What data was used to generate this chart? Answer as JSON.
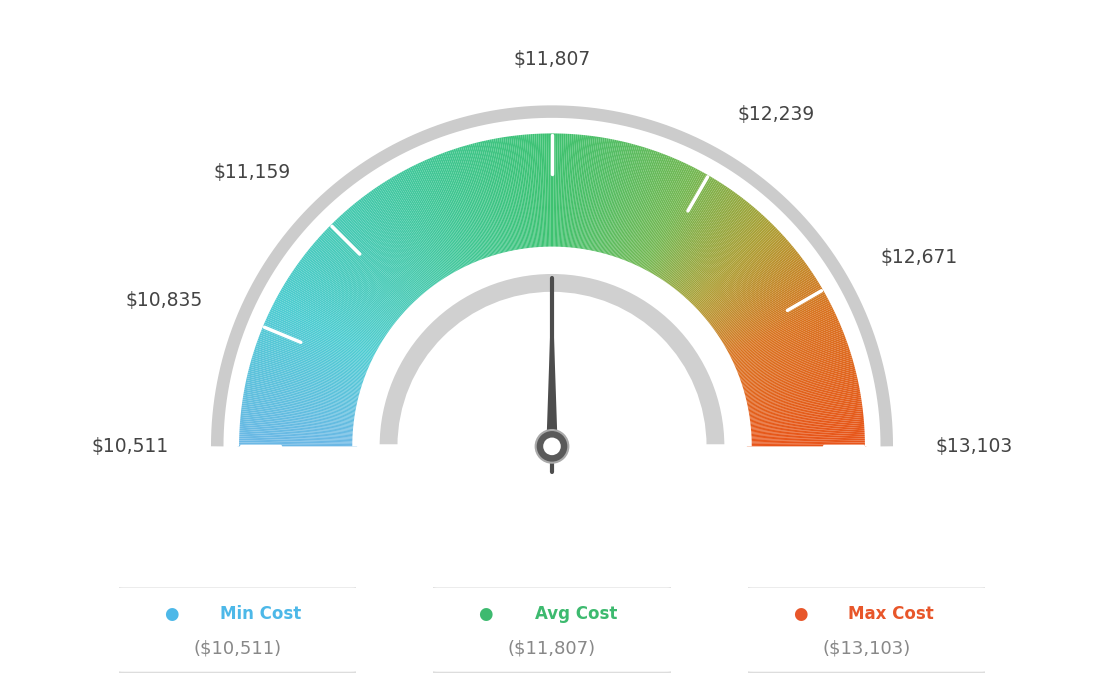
{
  "min_value": 10511,
  "max_value": 13103,
  "avg_value": 11807,
  "labels": {
    "min": "$10,511",
    "l1": "$10,835",
    "l2": "$11,159",
    "avg": "$11,807",
    "r1": "$12,239",
    "r2": "$12,671",
    "max": "$13,103"
  },
  "legend": [
    {
      "label": "Min Cost",
      "value": "($10,511)",
      "color": "#4db8e8"
    },
    {
      "label": "Avg Cost",
      "value": "($11,807)",
      "color": "#3dba6f"
    },
    {
      "label": "Max Cost",
      "value": "($13,103)",
      "color": "#e8562a"
    }
  ],
  "color_stops": [
    [
      0.0,
      [
        0.42,
        0.72,
        0.9
      ]
    ],
    [
      0.15,
      [
        0.3,
        0.8,
        0.82
      ]
    ],
    [
      0.35,
      [
        0.25,
        0.78,
        0.6
      ]
    ],
    [
      0.5,
      [
        0.24,
        0.76,
        0.44
      ]
    ],
    [
      0.65,
      [
        0.45,
        0.72,
        0.32
      ]
    ],
    [
      0.75,
      [
        0.68,
        0.62,
        0.2
      ]
    ],
    [
      0.85,
      [
        0.85,
        0.45,
        0.12
      ]
    ],
    [
      1.0,
      [
        0.91,
        0.33,
        0.1
      ]
    ]
  ],
  "background_color": "#ffffff",
  "needle_color": "#4d4d4d",
  "pivot_dark": "#555555",
  "pivot_light": "#ffffff",
  "outer_r": 1.0,
  "inner_r": 0.62,
  "inner_ring_outer_r": 0.555,
  "inner_ring_inner_r": 0.485,
  "border_r": 1.065,
  "label_r": 1.16,
  "tick_outer_r": 0.99,
  "tick_inner_r": 0.865,
  "tick_values": [
    10511,
    10835,
    11159,
    11807,
    12239,
    12671,
    13103
  ]
}
